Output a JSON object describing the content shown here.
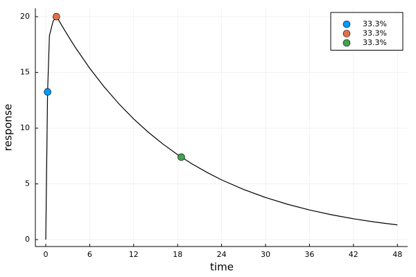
{
  "chart_data": {
    "type": "line",
    "xlabel": "time",
    "ylabel": "response",
    "xlim": [
      -1.42,
      49.4
    ],
    "ylim": [
      -0.62,
      20.75
    ],
    "xticks": [
      0,
      6,
      12,
      18,
      24,
      30,
      36,
      42,
      48
    ],
    "yticks": [
      0,
      5,
      10,
      15,
      20
    ],
    "grid": true,
    "legend": "top-right",
    "series": [
      {
        "type": "line",
        "color": "#000000",
        "x": [
          0,
          0.25,
          0.5,
          1,
          1.5,
          2,
          3,
          4,
          6,
          8,
          10,
          12,
          14,
          16,
          18,
          20,
          22,
          24,
          27,
          30,
          33,
          36,
          39,
          42,
          45,
          48
        ],
        "values": [
          0,
          13.25,
          18.3,
          19.6,
          20,
          19.42,
          18.32,
          17.28,
          15.37,
          13.68,
          12.17,
          10.82,
          9.63,
          8.57,
          7.62,
          6.78,
          6.03,
          5.36,
          4.5,
          3.78,
          3.17,
          2.66,
          2.23,
          1.87,
          1.57,
          1.32
        ]
      },
      {
        "type": "scatter",
        "name": "33.3%",
        "color": "#009af9",
        "x": [
          0.25
        ],
        "values": [
          13.25
        ]
      },
      {
        "type": "scatter",
        "name": "33.3%",
        "color": "#e26f46",
        "x": [
          1.45
        ],
        "values": [
          20
        ]
      },
      {
        "type": "scatter",
        "name": "33.3%",
        "color": "#3ea44e",
        "x": [
          18.5
        ],
        "values": [
          7.4
        ]
      }
    ]
  }
}
